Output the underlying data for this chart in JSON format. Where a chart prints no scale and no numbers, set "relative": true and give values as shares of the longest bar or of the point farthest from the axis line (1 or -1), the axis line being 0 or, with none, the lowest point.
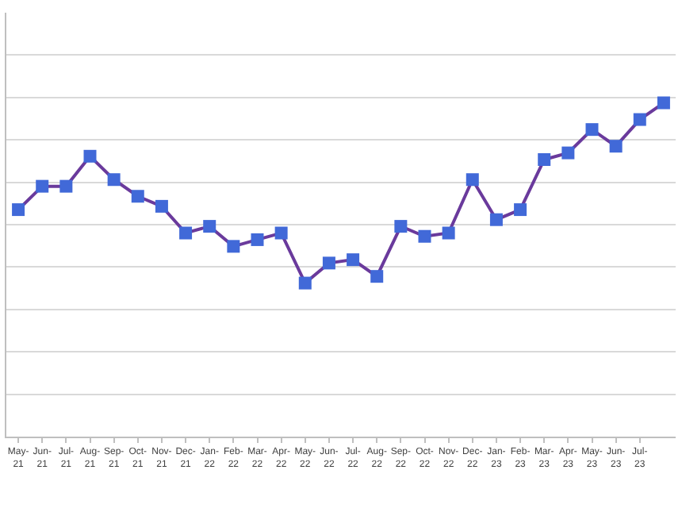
{
  "chart_data": {
    "type": "line",
    "relative": true,
    "grid": "y",
    "marker": "square",
    "line_style": "solid",
    "categories": [
      "May-21",
      "Jun-21",
      "Jul-21",
      "Aug-21",
      "Sep-21",
      "Oct-21",
      "Nov-21",
      "Dec-21",
      "Jan-22",
      "Feb-22",
      "Mar-22",
      "Apr-22",
      "May-22",
      "Jun-22",
      "Jul-22",
      "Aug-22",
      "Sep-22",
      "Oct-22",
      "Nov-22",
      "Dec-22",
      "Jan-23",
      "Feb-23",
      "Mar-23",
      "Apr-23",
      "May-23",
      "Jun-23",
      "Jul-23",
      null
    ],
    "series": [
      {
        "color": "#4169d8",
        "values": [
          0.68,
          0.75,
          0.75,
          0.84,
          0.77,
          0.72,
          0.69,
          0.61,
          0.63,
          0.57,
          0.59,
          0.61,
          0.46,
          0.52,
          0.53,
          0.48,
          0.63,
          0.6,
          0.61,
          0.77,
          0.65,
          0.68,
          0.83,
          0.85,
          0.92,
          0.87,
          0.95,
          1.0
        ]
      }
    ]
  }
}
